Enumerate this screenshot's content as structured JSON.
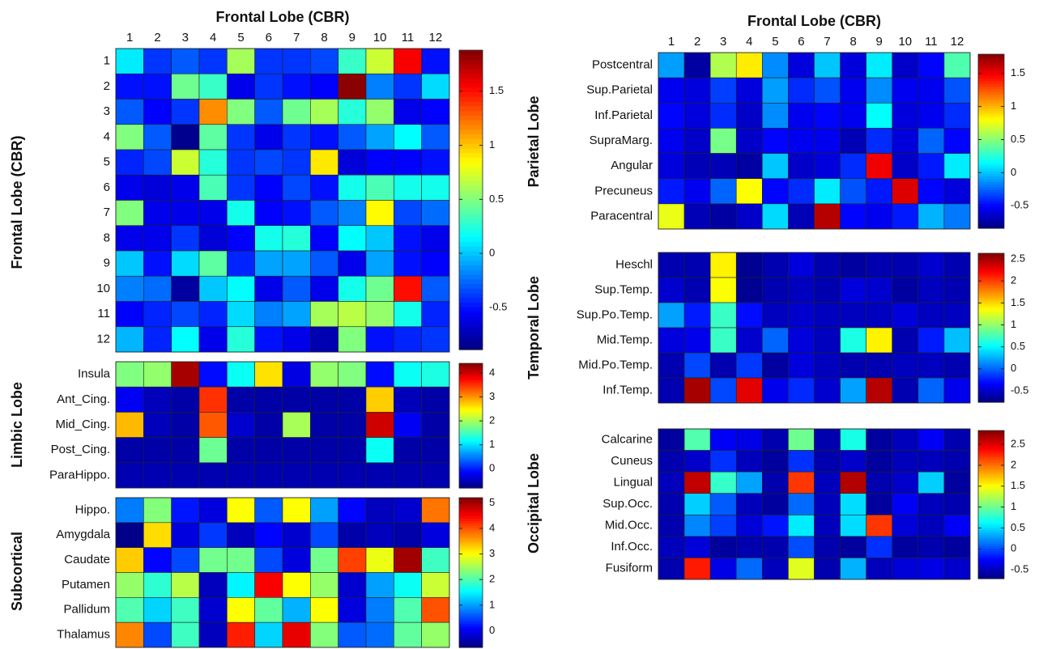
{
  "chart_data": [
    {
      "type": "heatmap",
      "title": "Frontal Lobe (CBR)",
      "ylabel": "Frontal Lobe (CBR)",
      "colormap": "jet",
      "categories": [
        "1",
        "2",
        "3",
        "4",
        "5",
        "6",
        "7",
        "8",
        "9",
        "10",
        "11",
        "12"
      ],
      "rows": [
        "1",
        "2",
        "3",
        "4",
        "5",
        "6",
        "7",
        "8",
        "9",
        "10",
        "11",
        "12"
      ],
      "zlim": [
        -0.89,
        1.88
      ],
      "zticks": [
        1.5,
        1,
        0.5,
        0,
        -0.5
      ],
      "values": [
        [
          0.1,
          -0.4,
          -0.3,
          -0.4,
          0.6,
          -0.4,
          -0.4,
          -0.35,
          0.3,
          0.7,
          1.55,
          -0.5
        ],
        [
          -0.5,
          -0.5,
          0.45,
          0.3,
          -0.6,
          -0.4,
          -0.5,
          -0.55,
          1.85,
          -0.2,
          -0.4,
          0.05
        ],
        [
          -0.3,
          -0.55,
          -0.4,
          1.15,
          0.5,
          -0.3,
          0.45,
          0.6,
          0.25,
          0.55,
          -0.6,
          -0.55
        ],
        [
          0.5,
          -0.3,
          -0.85,
          0.4,
          -0.4,
          -0.6,
          -0.4,
          -0.5,
          -0.3,
          -0.1,
          0.15,
          -0.3
        ],
        [
          -0.45,
          -0.35,
          0.7,
          0.25,
          -0.4,
          -0.35,
          -0.4,
          0.9,
          -0.65,
          -0.55,
          -0.55,
          -0.5
        ],
        [
          -0.6,
          -0.65,
          -0.6,
          0.35,
          -0.4,
          -0.55,
          -0.35,
          -0.5,
          0.2,
          0.35,
          0.2,
          0.2
        ],
        [
          0.5,
          -0.6,
          -0.6,
          -0.6,
          0.2,
          -0.55,
          -0.5,
          -0.3,
          -0.2,
          0.85,
          -0.35,
          -0.25
        ],
        [
          -0.6,
          -0.6,
          -0.4,
          -0.65,
          -0.55,
          0.2,
          0.25,
          -0.55,
          0.15,
          0.0,
          -0.5,
          -0.6
        ],
        [
          0.0,
          -0.5,
          0.05,
          0.4,
          -0.45,
          -0.1,
          -0.1,
          -0.3,
          -0.6,
          -0.1,
          -0.5,
          -0.55
        ],
        [
          -0.2,
          -0.25,
          -0.8,
          0.0,
          0.15,
          -0.6,
          -0.3,
          -0.6,
          0.2,
          0.45,
          1.5,
          -0.3
        ],
        [
          -0.55,
          -0.45,
          -0.35,
          -0.45,
          0.05,
          -0.2,
          -0.1,
          0.6,
          0.65,
          0.55,
          0.2,
          -0.45
        ],
        [
          -0.05,
          -0.45,
          0.15,
          -0.6,
          0.25,
          -0.5,
          -0.6,
          -0.75,
          0.5,
          -0.5,
          -0.45,
          -0.4
        ]
      ]
    },
    {
      "type": "heatmap",
      "ylabel": "Limbic Lobe",
      "colormap": "jet",
      "rows": [
        "Insula",
        "Ant_Cing.",
        "Mid_Cing.",
        "Post_Cing.",
        "ParaHippo."
      ],
      "zlim": [
        -0.8,
        4.4
      ],
      "zticks": [
        4,
        3,
        2,
        1,
        0
      ],
      "values": [
        [
          1.8,
          1.9,
          4.2,
          -0.1,
          1.2,
          2.6,
          -0.3,
          1.9,
          1.8,
          -0.1,
          1.2,
          1.3
        ],
        [
          -0.2,
          -0.5,
          -0.6,
          3.5,
          -0.6,
          -0.6,
          -0.6,
          -0.6,
          -0.6,
          2.7,
          -0.5,
          -0.6
        ],
        [
          2.8,
          -0.5,
          -0.6,
          3.3,
          -0.4,
          -0.6,
          2.0,
          -0.6,
          -0.6,
          4.0,
          -0.2,
          -0.6
        ],
        [
          -0.6,
          -0.6,
          -0.6,
          1.7,
          -0.6,
          -0.6,
          -0.6,
          -0.6,
          -0.6,
          1.2,
          -0.6,
          -0.6
        ],
        [
          -0.55,
          -0.55,
          -0.55,
          -0.55,
          -0.55,
          -0.55,
          -0.55,
          -0.55,
          -0.55,
          -0.55,
          -0.55,
          -0.55
        ]
      ]
    },
    {
      "type": "heatmap",
      "ylabel": "Subcortical",
      "colormap": "jet",
      "rows": [
        "Hippo.",
        "Amygdala",
        "Caudate",
        "Putamen",
        "Pallidum",
        "Thalamus"
      ],
      "zlim": [
        -0.65,
        5.2
      ],
      "zticks": [
        5,
        4,
        3,
        2,
        1,
        0
      ],
      "values": [
        [
          0.8,
          2.3,
          0.2,
          -0.1,
          3.0,
          0.6,
          3.0,
          1.0,
          0.1,
          -0.3,
          -0.2,
          3.8
        ],
        [
          -0.6,
          3.2,
          -0.1,
          0.4,
          -0.3,
          0.1,
          -0.2,
          0.5,
          -0.4,
          -0.3,
          -0.4,
          -0.1
        ],
        [
          3.3,
          0.1,
          0.5,
          2.2,
          2.2,
          0.5,
          -0.1,
          2.2,
          4.1,
          2.9,
          5.0,
          1.9
        ],
        [
          2.4,
          1.8,
          2.6,
          -0.3,
          1.5,
          4.5,
          3.0,
          2.4,
          -0.2,
          1.0,
          1.6,
          2.7
        ],
        [
          2.0,
          1.3,
          1.9,
          -0.2,
          3.0,
          2.1,
          1.1,
          3.0,
          -0.1,
          0.8,
          2.0,
          4.0
        ],
        [
          3.7,
          0.5,
          1.9,
          -0.3,
          4.3,
          1.3,
          4.6,
          2.3,
          0.6,
          0.7,
          2.1,
          2.4
        ]
      ]
    },
    {
      "type": "heatmap",
      "title": "Frontal Lobe (CBR)",
      "ylabel": "Parietal Lobe",
      "colormap": "jet",
      "categories": [
        "1",
        "2",
        "3",
        "4",
        "5",
        "6",
        "7",
        "8",
        "9",
        "10",
        "11",
        "12"
      ],
      "rows": [
        "Postcentral",
        "Sup.Parietal",
        "Inf.Parietal",
        "SupraMarg.",
        "Angular",
        "Precuneus",
        "Paracentral"
      ],
      "zlim": [
        -0.84,
        1.79
      ],
      "zticks": [
        1.5,
        1,
        0.5,
        0,
        -0.5
      ],
      "values": [
        [
          -0.1,
          -0.75,
          0.6,
          0.85,
          -0.15,
          -0.6,
          0.0,
          -0.6,
          0.1,
          -0.65,
          -0.5,
          0.35
        ],
        [
          -0.55,
          -0.6,
          -0.35,
          -0.6,
          -0.1,
          -0.4,
          -0.3,
          -0.55,
          -0.15,
          -0.55,
          -0.55,
          -0.3
        ],
        [
          -0.5,
          -0.6,
          -0.4,
          -0.65,
          -0.15,
          -0.55,
          -0.5,
          -0.55,
          0.15,
          -0.6,
          -0.55,
          -0.4
        ],
        [
          -0.55,
          -0.65,
          0.45,
          -0.65,
          -0.5,
          -0.55,
          -0.55,
          -0.7,
          -0.4,
          -0.6,
          -0.25,
          -0.5
        ],
        [
          -0.6,
          -0.7,
          -0.7,
          -0.75,
          0.0,
          -0.65,
          -0.6,
          -0.4,
          1.5,
          -0.65,
          -0.45,
          0.1
        ],
        [
          -0.45,
          -0.55,
          -0.25,
          0.8,
          -0.5,
          -0.4,
          0.1,
          -0.3,
          -0.45,
          1.55,
          -0.5,
          -0.6
        ],
        [
          0.75,
          -0.7,
          -0.75,
          -0.65,
          0.05,
          -0.7,
          1.65,
          -0.5,
          -0.55,
          -0.45,
          -0.05,
          -0.2
        ]
      ]
    },
    {
      "type": "heatmap",
      "ylabel": "Temporal Lobe",
      "colormap": "jet",
      "rows": [
        "Heschl",
        "Sup.Temp.",
        "Sup.Po.Temp.",
        "Mid.Temp.",
        "Mid.Po.Temp.",
        "Inf.Temp."
      ],
      "zlim": [
        -0.76,
        2.63
      ],
      "zticks": [
        2.5,
        2,
        1.5,
        1,
        0.5,
        0,
        -0.5
      ],
      "values": [
        [
          -0.6,
          -0.6,
          1.4,
          -0.7,
          -0.6,
          -0.45,
          -0.6,
          -0.65,
          -0.6,
          -0.6,
          -0.5,
          -0.6
        ],
        [
          -0.5,
          -0.6,
          1.35,
          -0.7,
          -0.6,
          -0.55,
          -0.6,
          -0.45,
          -0.5,
          -0.65,
          -0.55,
          -0.6
        ],
        [
          0.2,
          -0.25,
          0.7,
          -0.3,
          -0.55,
          -0.5,
          -0.55,
          -0.55,
          -0.55,
          -0.45,
          -0.55,
          -0.55
        ],
        [
          -0.45,
          -0.4,
          0.7,
          -0.5,
          0.0,
          -0.45,
          -0.55,
          0.6,
          1.4,
          -0.6,
          -0.25,
          0.3
        ],
        [
          -0.6,
          -0.1,
          -0.6,
          -0.15,
          -0.65,
          -0.45,
          -0.55,
          -0.6,
          -0.6,
          -0.55,
          -0.55,
          -0.6
        ],
        [
          -0.6,
          2.5,
          -0.1,
          2.3,
          -0.4,
          -0.2,
          -0.5,
          0.2,
          2.45,
          -0.6,
          0.0,
          -0.4
        ]
      ]
    },
    {
      "type": "heatmap",
      "ylabel": "Occipital Lobe",
      "colormap": "jet",
      "rows": [
        "Calcarine",
        "Cuneus",
        "Lingual",
        "Sup.Occ.",
        "Mid.Occ.",
        "Inf.Occ.",
        "Fusiform"
      ],
      "zlim": [
        -0.71,
        2.83
      ],
      "zticks": [
        2.5,
        2,
        1.5,
        1,
        0.5,
        0,
        -0.5
      ],
      "values": [
        [
          -0.6,
          0.9,
          -0.3,
          -0.35,
          -0.55,
          1.0,
          -0.55,
          0.7,
          -0.6,
          -0.5,
          -0.3,
          -0.55
        ],
        [
          -0.55,
          -0.45,
          -0.1,
          -0.5,
          -0.6,
          -0.1,
          -0.55,
          -0.45,
          -0.6,
          -0.5,
          -0.5,
          -0.55
        ],
        [
          -0.5,
          2.6,
          0.8,
          0.3,
          -0.55,
          2.2,
          -0.5,
          2.65,
          -0.55,
          -0.45,
          0.45,
          -0.6
        ],
        [
          -0.55,
          0.45,
          0.05,
          -0.5,
          -0.6,
          0.1,
          -0.5,
          0.5,
          -0.6,
          -0.3,
          -0.5,
          -0.55
        ],
        [
          -0.55,
          0.2,
          -0.05,
          -0.4,
          -0.2,
          0.55,
          -0.5,
          0.5,
          2.2,
          -0.4,
          -0.5,
          -0.3
        ],
        [
          -0.5,
          -0.4,
          -0.6,
          -0.55,
          -0.55,
          0.0,
          -0.55,
          -0.6,
          -0.1,
          -0.6,
          -0.55,
          -0.6
        ],
        [
          -0.55,
          2.3,
          -0.35,
          0.1,
          -0.5,
          1.4,
          -0.55,
          0.35,
          -0.5,
          -0.4,
          -0.35,
          -0.45
        ]
      ]
    }
  ]
}
